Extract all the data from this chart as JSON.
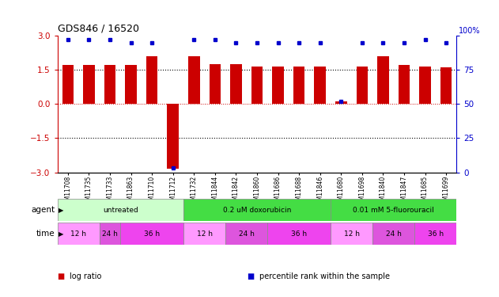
{
  "title": "GDS846 / 16520",
  "samples": [
    "GSM11708",
    "GSM11735",
    "GSM11733",
    "GSM11863",
    "GSM11710",
    "GSM11712",
    "GSM11732",
    "GSM11844",
    "GSM11842",
    "GSM11860",
    "GSM11686",
    "GSM11688",
    "GSM11846",
    "GSM11680",
    "GSM11698",
    "GSM11840",
    "GSM11847",
    "GSM11685",
    "GSM11699"
  ],
  "log_ratio": [
    1.7,
    1.7,
    1.7,
    1.7,
    2.1,
    -2.85,
    2.1,
    1.75,
    1.75,
    1.65,
    1.65,
    1.65,
    1.65,
    0.1,
    1.65,
    2.1,
    1.7,
    1.65,
    1.6
  ],
  "percentile": [
    97,
    97,
    97,
    95,
    95,
    3,
    97,
    97,
    95,
    95,
    95,
    95,
    95,
    52,
    95,
    95,
    95,
    97,
    95
  ],
  "bar_color": "#cc0000",
  "dot_color": "#0000cc",
  "ylim_left": [
    -3,
    3
  ],
  "ylim_right": [
    0,
    100
  ],
  "yticks_left": [
    -3,
    -1.5,
    0,
    1.5,
    3
  ],
  "yticks_right": [
    0,
    25,
    50,
    75,
    100
  ],
  "hlines": [
    -1.5,
    0,
    1.5
  ],
  "agent_groups": [
    {
      "label": "untreated",
      "start": 0,
      "end": 5,
      "color": "#ccffcc"
    },
    {
      "label": "0.2 uM doxorubicin",
      "start": 6,
      "end": 12,
      "color": "#44dd44"
    },
    {
      "label": "0.01 mM 5-fluorouracil",
      "start": 13,
      "end": 18,
      "color": "#44dd44"
    }
  ],
  "time_groups": [
    {
      "label": "12 h",
      "start": 0,
      "end": 1,
      "color": "#ff99ff"
    },
    {
      "label": "24 h",
      "start": 2,
      "end": 2,
      "color": "#dd55dd"
    },
    {
      "label": "36 h",
      "start": 3,
      "end": 5,
      "color": "#ee44ee"
    },
    {
      "label": "12 h",
      "start": 6,
      "end": 7,
      "color": "#ff99ff"
    },
    {
      "label": "24 h",
      "start": 8,
      "end": 9,
      "color": "#dd55dd"
    },
    {
      "label": "36 h",
      "start": 10,
      "end": 12,
      "color": "#ee44ee"
    },
    {
      "label": "12 h",
      "start": 13,
      "end": 14,
      "color": "#ff99ff"
    },
    {
      "label": "24 h",
      "start": 15,
      "end": 16,
      "color": "#dd55dd"
    },
    {
      "label": "36 h",
      "start": 17,
      "end": 18,
      "color": "#ee44ee"
    }
  ],
  "agent_row_label": "agent",
  "time_row_label": "time",
  "legend_items": [
    {
      "label": "log ratio",
      "color": "#cc0000"
    },
    {
      "label": "percentile rank within the sample",
      "color": "#0000cc"
    }
  ],
  "axis_label_color_left": "#cc0000",
  "axis_label_color_right": "#0000cc",
  "tick_label_bg": "#dddddd"
}
